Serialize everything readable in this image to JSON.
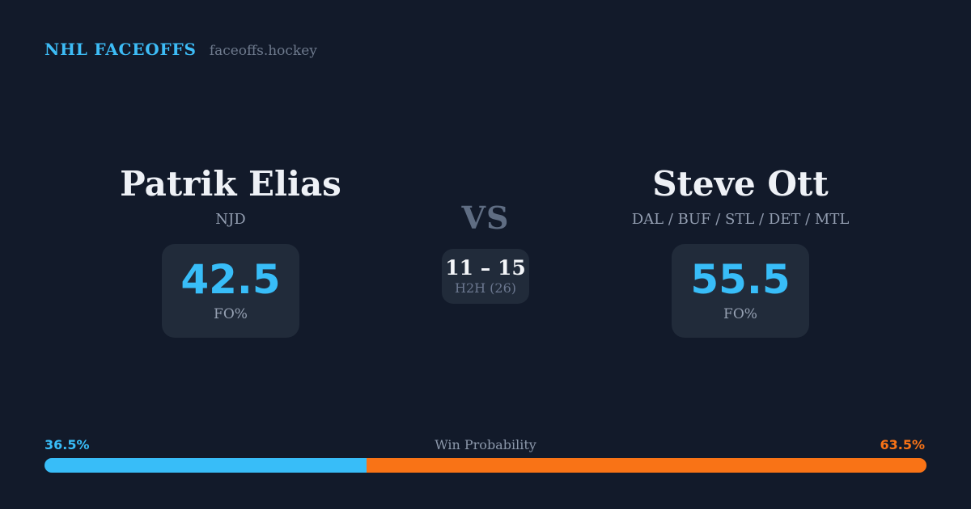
{
  "header": {
    "brand": "NHL FACEOFFS",
    "site": "faceoffs.hockey"
  },
  "matchup": {
    "left": {
      "name": "Patrik Elias",
      "teams": "NJD",
      "value": "42.5",
      "value_label": "FO%"
    },
    "versus": {
      "label": "VS",
      "score": "11 – 15",
      "score_label": "H2H (26)"
    },
    "right": {
      "name": "Steve Ott",
      "teams": "DAL / BUF / STL / DET / MTL",
      "value": "55.5",
      "value_label": "FO%"
    }
  },
  "win_probability": {
    "title": "Win Probability",
    "left_pct_label": "36.5%",
    "right_pct_label": "63.5%",
    "left_value": 36.5,
    "right_value": 63.5
  },
  "colors": {
    "background": "#121a2a",
    "card": "#212b3a",
    "accent_blue": "#38bdf8",
    "accent_orange": "#f97316",
    "text_primary": "#eef1f6",
    "text_muted": "#8c98ab"
  },
  "chart_data": {
    "type": "bar",
    "title": "Win Probability",
    "categories": [
      "Patrik Elias",
      "Steve Ott"
    ],
    "values": [
      36.5,
      63.5
    ],
    "unit": "%",
    "faceoff_pct": {
      "Patrik Elias": 42.5,
      "Steve Ott": 55.5
    },
    "head_to_head": {
      "score": "11 – 15",
      "games": 26
    },
    "legend_position": "none",
    "orientation": "horizontal-stacked"
  }
}
